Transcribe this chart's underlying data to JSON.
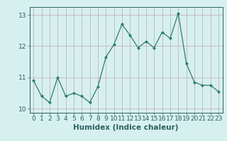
{
  "x": [
    0,
    1,
    2,
    3,
    4,
    5,
    6,
    7,
    8,
    9,
    10,
    11,
    12,
    13,
    14,
    15,
    16,
    17,
    18,
    19,
    20,
    21,
    22,
    23
  ],
  "y": [
    10.9,
    10.4,
    10.2,
    11.0,
    10.4,
    10.5,
    10.4,
    10.2,
    10.7,
    11.65,
    12.05,
    12.7,
    12.35,
    11.95,
    12.15,
    11.95,
    12.45,
    12.25,
    13.05,
    11.45,
    10.85,
    10.75,
    10.75,
    10.55
  ],
  "xlabel": "Humidex (Indice chaleur)",
  "line_color": "#2d7d6e",
  "marker_color": "#2d7d6e",
  "bg_color": "#d6f0f0",
  "grid_hcolor": "#c8a8a8",
  "grid_vcolor": "#c8a8a8",
  "ylim": [
    9.87,
    13.25
  ],
  "xlim": [
    -0.5,
    23.5
  ],
  "yticks": [
    10,
    11,
    12,
    13
  ],
  "xticks": [
    0,
    1,
    2,
    3,
    4,
    5,
    6,
    7,
    8,
    9,
    10,
    11,
    12,
    13,
    14,
    15,
    16,
    17,
    18,
    19,
    20,
    21,
    22,
    23
  ],
  "label_color": "#2d6060",
  "tick_color": "#2d6060",
  "xlabel_fontsize": 7.5,
  "tick_fontsize": 6.5
}
